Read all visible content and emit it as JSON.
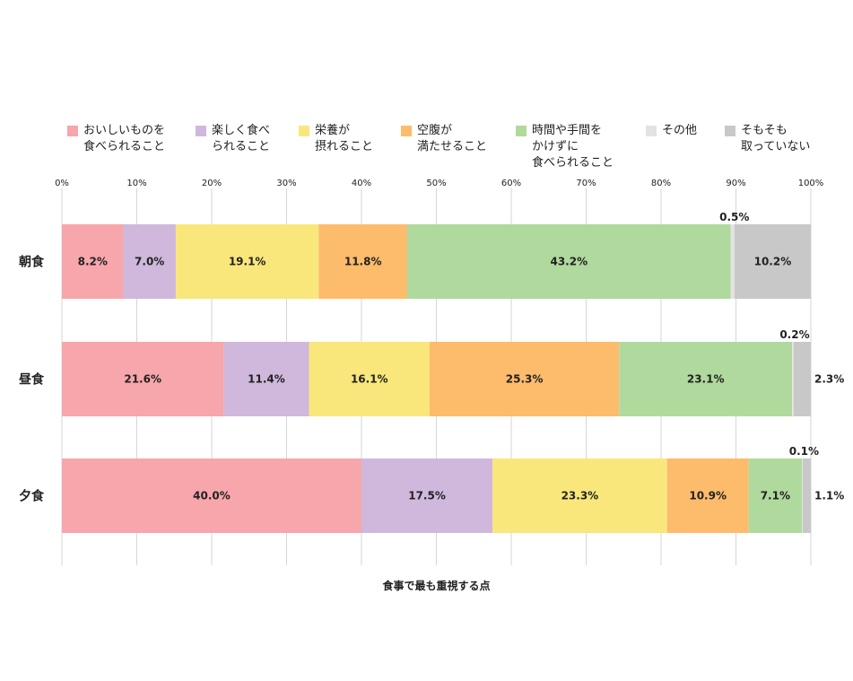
{
  "chart_data": {
    "type": "bar",
    "orientation": "horizontal",
    "stacked": true,
    "title": "",
    "xlabel": "食事で最も重視する点",
    "ylabel": "",
    "xlim": [
      0,
      100
    ],
    "x_ticks": [
      "0%",
      "10%",
      "20%",
      "30%",
      "40%",
      "50%",
      "60%",
      "70%",
      "80%",
      "90%",
      "100%"
    ],
    "grid": true,
    "legend_position": "top",
    "categories": [
      "朝食",
      "昼食",
      "夕食"
    ],
    "series": [
      {
        "name": "おいしいものを\n食べられること",
        "color": "#f7a6ab",
        "values": [
          8.2,
          21.6,
          40.0
        ],
        "labels": [
          "8.2%",
          "21.6%",
          "40.0%"
        ]
      },
      {
        "name": "楽しく食べ\nられること",
        "color": "#cfb8dc",
        "values": [
          7.0,
          11.4,
          17.5
        ],
        "labels": [
          "7.0%",
          "11.4%",
          "17.5%"
        ]
      },
      {
        "name": "栄養が\n摂れること",
        "color": "#f9e77c",
        "values": [
          19.1,
          16.1,
          23.3
        ],
        "labels": [
          "19.1%",
          "16.1%",
          "23.3%"
        ]
      },
      {
        "name": "空腹が\n満たせること",
        "color": "#fdbb6c",
        "values": [
          11.8,
          25.3,
          10.9
        ],
        "labels": [
          "11.8%",
          "25.3%",
          "10.9%"
        ]
      },
      {
        "name": "時間や手間を\nかけずに\n食べられること",
        "color": "#b0d99d",
        "values": [
          43.2,
          23.1,
          7.1
        ],
        "labels": [
          "43.2%",
          "23.1%",
          "7.1%"
        ]
      },
      {
        "name": "その他",
        "color": "#e3e3e3",
        "values": [
          0.5,
          0.2,
          0.1
        ],
        "labels": [
          "0.5%",
          "0.2%",
          "0.1%"
        ]
      },
      {
        "name": "そもそも\n取っていない",
        "color": "#c8c8c8",
        "values": [
          10.2,
          2.3,
          1.1
        ],
        "labels": [
          "10.2%",
          "2.3%",
          "1.1%"
        ]
      }
    ],
    "colors": {
      "grid": "#d6d6d6",
      "text": "#222222"
    }
  }
}
